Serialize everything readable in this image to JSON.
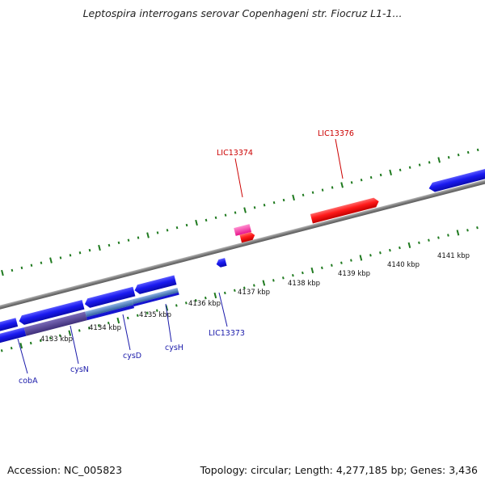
{
  "title": "Leptospira interrogans serovar Copenhageni str. Fiocruz L1-1...",
  "footer": {
    "accession": "Accession: NC_005823",
    "summary": "Topology: circular; Length: 4,277,185 bp; Genes: 3,436"
  },
  "colors": {
    "backbone": "#8a8a8a",
    "forward_gene": "#ff0000",
    "forward_gene_pink": "#ff3ba8",
    "reverse_gene": "#1111ee",
    "operon_blue": "#4a7fc8",
    "operon_purple": "#5b4a98",
    "tick": "#1f7a1f",
    "label_forward": "#cc0000",
    "label_reverse": "#1a1aaa"
  },
  "scale_labels": [
    "4133 kbp",
    "4134 kbp",
    "4135 kbp",
    "4136 kbp",
    "4137 kbp",
    "4138 kbp",
    "4139 kbp",
    "4140 kbp",
    "4141 kbp"
  ],
  "gene_labels": {
    "forward": [
      "LIC13374",
      "LIC13376"
    ],
    "reverse": [
      "LIC13373",
      "cobA",
      "cysN",
      "cysD",
      "cysH"
    ]
  }
}
